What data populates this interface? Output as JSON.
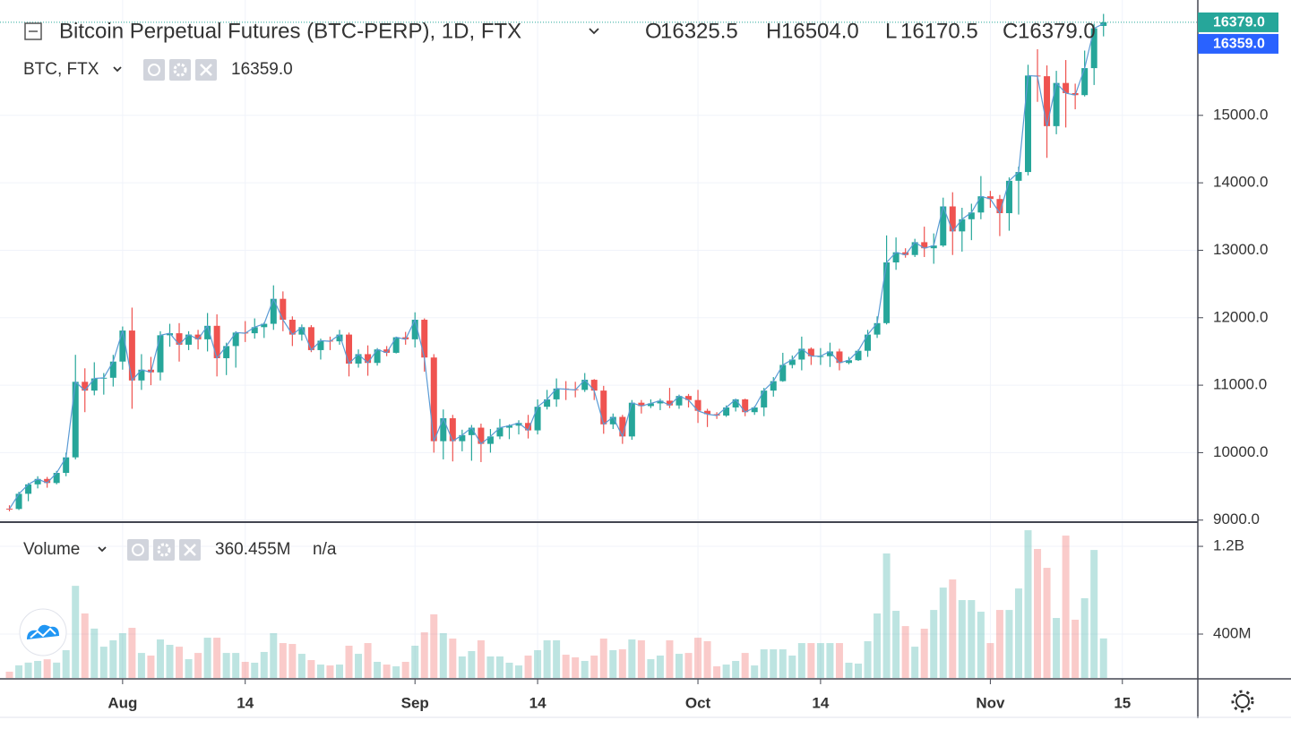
{
  "chart_data": {
    "type": "candlestick",
    "title": "Bitcoin Perpetual Futures (BTC-PERP), 1D, FTX",
    "ohlc_legend": [
      {
        "label": "O",
        "value": "16325.5"
      },
      {
        "label": "H",
        "value": "16504.0"
      },
      {
        "label": "L",
        "value": "16170.5"
      },
      {
        "label": "C",
        "value": "16379.0"
      }
    ],
    "up_color": "#26a69a",
    "down_color": "#ef5350",
    "grid": true,
    "xlim": [
      "07-19",
      "11-23"
    ],
    "xticks": [
      {
        "value": "08-01",
        "label": "Aug"
      },
      {
        "value": "08-14",
        "label": "14"
      },
      {
        "value": "09-01",
        "label": "Sep"
      },
      {
        "value": "09-14",
        "label": "14"
      },
      {
        "value": "10-01",
        "label": "Oct"
      },
      {
        "value": "10-14",
        "label": "14"
      },
      {
        "value": "11-01",
        "label": "Nov"
      },
      {
        "value": "11-15",
        "label": "15"
      }
    ],
    "ylim": [
      8970,
      16710
    ],
    "yticks": [
      {
        "value": 9000,
        "label": "9000.0"
      },
      {
        "value": 10000,
        "label": "10000.0"
      },
      {
        "value": 11000,
        "label": "11000.0"
      },
      {
        "value": 12000,
        "label": "12000.0"
      },
      {
        "value": 13000,
        "label": "13000.0"
      },
      {
        "value": 14000,
        "label": "14000.0"
      },
      {
        "value": 15000,
        "label": "15000.0"
      }
    ],
    "x": [
      "07-20",
      "07-21",
      "07-22",
      "07-23",
      "07-24",
      "07-25",
      "07-26",
      "07-27",
      "07-28",
      "07-29",
      "07-30",
      "07-31",
      "08-01",
      "08-02",
      "08-03",
      "08-04",
      "08-05",
      "08-06",
      "08-07",
      "08-08",
      "08-09",
      "08-10",
      "08-11",
      "08-12",
      "08-13",
      "08-14",
      "08-15",
      "08-16",
      "08-17",
      "08-18",
      "08-19",
      "08-20",
      "08-21",
      "08-22",
      "08-23",
      "08-24",
      "08-25",
      "08-26",
      "08-27",
      "08-28",
      "08-29",
      "08-30",
      "08-31",
      "09-01",
      "09-02",
      "09-03",
      "09-04",
      "09-05",
      "09-06",
      "09-07",
      "09-08",
      "09-09",
      "09-10",
      "09-11",
      "09-12",
      "09-13",
      "09-14",
      "09-15",
      "09-16",
      "09-17",
      "09-18",
      "09-19",
      "09-20",
      "09-21",
      "09-22",
      "09-23",
      "09-24",
      "09-25",
      "09-26",
      "09-27",
      "09-28",
      "09-29",
      "09-30",
      "10-01",
      "10-02",
      "10-03",
      "10-04",
      "10-05",
      "10-06",
      "10-07",
      "10-08",
      "10-09",
      "10-10",
      "10-11",
      "10-12",
      "10-13",
      "10-14",
      "10-15",
      "10-16",
      "10-17",
      "10-18",
      "10-19",
      "10-20",
      "10-21",
      "10-22",
      "10-23",
      "10-24",
      "10-25",
      "10-26",
      "10-27",
      "10-28",
      "10-29",
      "10-30",
      "10-31",
      "11-01",
      "11-02",
      "11-03",
      "11-04",
      "11-05",
      "11-06",
      "11-07",
      "11-08",
      "11-09",
      "11-10",
      "11-11",
      "11-12",
      "11-13"
    ],
    "open": [
      9170,
      9165,
      9390,
      9530,
      9610,
      9550,
      9700,
      9930,
      11050,
      10920,
      11100,
      11110,
      11350,
      11810,
      11070,
      11230,
      11190,
      11740,
      11770,
      11600,
      11750,
      11680,
      11880,
      11400,
      11580,
      11780,
      11770,
      11860,
      11910,
      12280,
      11970,
      11750,
      11860,
      11520,
      11660,
      11650,
      11750,
      11320,
      11460,
      11330,
      11530,
      11480,
      11710,
      11680,
      11970,
      11410,
      10170,
      10510,
      10170,
      10260,
      10370,
      10130,
      10240,
      10370,
      10400,
      10440,
      10330,
      10680,
      10790,
      10950,
      10940,
      10930,
      11080,
      10920,
      10420,
      10530,
      10240,
      10740,
      10690,
      10730,
      10770,
      10700,
      10840,
      10780,
      10620,
      10570,
      10550,
      10670,
      10790,
      10600,
      10670,
      10920,
      11060,
      11300,
      11380,
      11540,
      11430,
      11430,
      11500,
      11330,
      11370,
      11510,
      11750,
      11920,
      12820,
      12970,
      12930,
      13120,
      13030,
      13070,
      13650,
      13280,
      13460,
      13560,
      13800,
      13760,
      13550,
      14030,
      14160,
      15590,
      15580,
      14840,
      15480,
      15330,
      15300,
      15700,
      16325.5
    ],
    "high": [
      9220,
      9420,
      9550,
      9650,
      9640,
      9730,
      10000,
      11450,
      11250,
      11340,
      11180,
      11450,
      11870,
      12150,
      11460,
      11420,
      11800,
      11910,
      11920,
      11800,
      11820,
      12070,
      12050,
      11630,
      11800,
      11950,
      11990,
      11930,
      12480,
      12390,
      12020,
      11900,
      11890,
      11690,
      11720,
      11820,
      11780,
      11530,
      11590,
      11550,
      11580,
      11720,
      11790,
      12080,
      11990,
      11460,
      10640,
      10560,
      10340,
      10410,
      10430,
      10350,
      10500,
      10420,
      10480,
      10560,
      10790,
      10930,
      11100,
      11060,
      11050,
      11180,
      11090,
      10990,
      10580,
      10560,
      10780,
      10780,
      10790,
      10800,
      10960,
      10860,
      10870,
      10930,
      10650,
      10600,
      10700,
      10800,
      10800,
      10690,
      10960,
      11120,
      11480,
      11440,
      11720,
      11560,
      11550,
      11630,
      11540,
      11420,
      11530,
      11820,
      12020,
      13220,
      13190,
      13030,
      13170,
      13350,
      13250,
      13780,
      13860,
      13630,
      13690,
      14100,
      13880,
      13820,
      14080,
      14240,
      15750,
      15980,
      15740,
      15660,
      15820,
      15470,
      15960,
      16360,
      16504.0
    ],
    "low": [
      9130,
      9150,
      9280,
      9470,
      9480,
      9530,
      9650,
      9900,
      10600,
      10850,
      10860,
      10980,
      11230,
      10650,
      10930,
      11000,
      11070,
      11570,
      11350,
      11520,
      11530,
      11500,
      11130,
      11150,
      11260,
      11640,
      11690,
      11700,
      11820,
      11800,
      11580,
      11660,
      11490,
      11380,
      11520,
      11600,
      11130,
      11260,
      11140,
      11290,
      11430,
      11470,
      11600,
      11560,
      11200,
      10000,
      9900,
      9870,
      10020,
      9880,
      9860,
      10000,
      10200,
      10200,
      10270,
      10210,
      10270,
      10640,
      10680,
      10780,
      10820,
      10900,
      10780,
      10280,
      10350,
      10130,
      10190,
      10580,
      10660,
      10630,
      10660,
      10650,
      10670,
      10440,
      10380,
      10500,
      10530,
      10610,
      10540,
      10560,
      10540,
      10830,
      11050,
      11250,
      11220,
      11300,
      11300,
      11270,
      11220,
      11310,
      11360,
      11420,
      11700,
      11900,
      12710,
      12890,
      12900,
      12900,
      12800,
      13050,
      12930,
      12980,
      13150,
      13460,
      13630,
      13210,
      13290,
      13530,
      14110,
      15200,
      14370,
      14720,
      14820,
      15090,
      15280,
      15450,
      16170.5
    ],
    "close": [
      9165,
      9390,
      9530,
      9610,
      9550,
      9700,
      9930,
      11050,
      10920,
      11100,
      11110,
      11350,
      11810,
      11070,
      11230,
      11190,
      11740,
      11770,
      11600,
      11750,
      11680,
      11880,
      11400,
      11580,
      11780,
      11770,
      11860,
      11910,
      12280,
      11970,
      11750,
      11860,
      11520,
      11660,
      11650,
      11750,
      11320,
      11460,
      11330,
      11530,
      11480,
      11710,
      11680,
      11970,
      11410,
      10170,
      10510,
      10170,
      10260,
      10370,
      10130,
      10240,
      10370,
      10400,
      10440,
      10330,
      10680,
      10790,
      10950,
      10940,
      10930,
      11080,
      10920,
      10420,
      10530,
      10240,
      10740,
      10690,
      10730,
      10770,
      10700,
      10840,
      10780,
      10620,
      10570,
      10550,
      10670,
      10790,
      10600,
      10670,
      10920,
      11060,
      11300,
      11380,
      11540,
      11430,
      11430,
      11500,
      11330,
      11370,
      11510,
      11750,
      11920,
      12820,
      12970,
      12930,
      13120,
      13030,
      13070,
      13650,
      13280,
      13460,
      13560,
      13800,
      13760,
      13550,
      14030,
      14160,
      15590,
      15580,
      14840,
      15480,
      15330,
      15300,
      15700,
      16290,
      16379.0
    ],
    "series": [
      {
        "name": "BTC, FTX",
        "color": "#5b9bd5",
        "last_label": "16359.0",
        "values": [
          9165,
          9390,
          9530,
          9610,
          9550,
          9700,
          9930,
          11050,
          10920,
          11100,
          11110,
          11350,
          11810,
          11070,
          11230,
          11190,
          11740,
          11770,
          11600,
          11750,
          11680,
          11880,
          11400,
          11580,
          11780,
          11770,
          11860,
          11910,
          12280,
          11970,
          11750,
          11860,
          11520,
          11660,
          11650,
          11750,
          11320,
          11460,
          11330,
          11530,
          11480,
          11710,
          11680,
          11970,
          11410,
          10170,
          10510,
          10170,
          10260,
          10370,
          10130,
          10240,
          10370,
          10400,
          10440,
          10330,
          10680,
          10790,
          10950,
          10940,
          10930,
          11080,
          10920,
          10420,
          10530,
          10240,
          10740,
          10690,
          10730,
          10770,
          10700,
          10840,
          10780,
          10620,
          10570,
          10550,
          10670,
          10790,
          10600,
          10670,
          10920,
          11060,
          11300,
          11380,
          11540,
          11430,
          11430,
          11500,
          11330,
          11370,
          11510,
          11750,
          11920,
          12820,
          12970,
          12930,
          13120,
          13030,
          13070,
          13650,
          13280,
          13460,
          13560,
          13800,
          13760,
          13550,
          14030,
          14160,
          15590,
          15580,
          14840,
          15480,
          15330,
          15300,
          15700,
          16290,
          16359.0
        ]
      }
    ],
    "price_labels": [
      {
        "value": 16379.0,
        "label": "16379.0",
        "color": "#26a69a"
      },
      {
        "value": 16359.0,
        "label": "16359.0",
        "color": "#2962ff"
      }
    ],
    "volume": {
      "title": "Volume",
      "value_label": "360.455M",
      "extra": "n/a",
      "ylim": [
        0,
        1380000000
      ],
      "yticks": [
        {
          "value": 400000000,
          "label": "400M"
        },
        {
          "value": 1200000000,
          "label": "1.2B"
        }
      ],
      "values": [
        57000000,
        115000000,
        140000000,
        155000000,
        170000000,
        140000000,
        253000000,
        840000000,
        588000000,
        450000000,
        285000000,
        343000000,
        408000000,
        457000000,
        228000000,
        204000000,
        351000000,
        302000000,
        285000000,
        171000000,
        228000000,
        367000000,
        367000000,
        228000000,
        228000000,
        147000000,
        139000000,
        237000000,
        408000000,
        318000000,
        310000000,
        220000000,
        163000000,
        122000000,
        114000000,
        122000000,
        294000000,
        220000000,
        318000000,
        147000000,
        122000000,
        106000000,
        147000000,
        294000000,
        416000000,
        580000000,
        408000000,
        359000000,
        196000000,
        245000000,
        343000000,
        196000000,
        196000000,
        139000000,
        114000000,
        204000000,
        253000000,
        343000000,
        343000000,
        212000000,
        188000000,
        155000000,
        204000000,
        359000000,
        253000000,
        261000000,
        351000000,
        343000000,
        171000000,
        204000000,
        343000000,
        220000000,
        228000000,
        367000000,
        335000000,
        106000000,
        122000000,
        155000000,
        228000000,
        114000000,
        261000000,
        261000000,
        261000000,
        204000000,
        318000000,
        318000000,
        318000000,
        318000000,
        318000000,
        139000000,
        131000000,
        335000000,
        588000000,
        1135000000,
        612000000,
        473000000,
        285000000,
        449000000,
        620000000,
        824000000,
        898000000,
        710000000,
        710000000,
        604000000,
        318000000,
        620000000,
        620000000,
        816000000,
        1347000000,
        1176000000,
        1004000000,
        547000000,
        1298000000,
        531000000,
        727000000,
        1167000000,
        360455000
      ]
    }
  }
}
